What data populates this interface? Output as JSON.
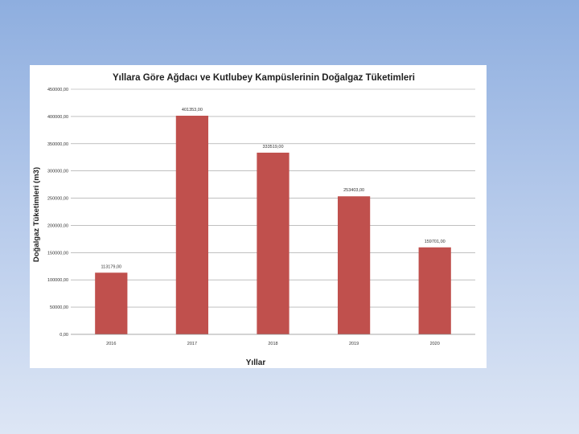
{
  "chart_data": {
    "type": "bar",
    "title": "Yıllara Göre Ağdacı ve Kutlubey Kampüslerinin Doğalgaz Tüketimleri",
    "xlabel": "Yıllar",
    "ylabel": "Doğalgaz Tüketimleri (m3)",
    "categories": [
      "2016",
      "2017",
      "2018",
      "2019",
      "2020"
    ],
    "values": [
      113179,
      401353,
      333519,
      253403,
      159701
    ],
    "data_labels": [
      "113179,00",
      "401353,00",
      "333519,00",
      "253403,00",
      "159701,00"
    ],
    "ylim": [
      0,
      450000
    ],
    "yticks": [
      0,
      50000,
      100000,
      150000,
      200000,
      250000,
      300000,
      350000,
      400000,
      450000
    ],
    "ytick_labels": [
      "0,00",
      "50000,00",
      "100000,00",
      "150000,00",
      "200000,00",
      "250000,00",
      "300000,00",
      "350000,00",
      "400000,00",
      "450000,00"
    ],
    "bar_color": "#c0504d",
    "grid": true,
    "legend": "none"
  }
}
